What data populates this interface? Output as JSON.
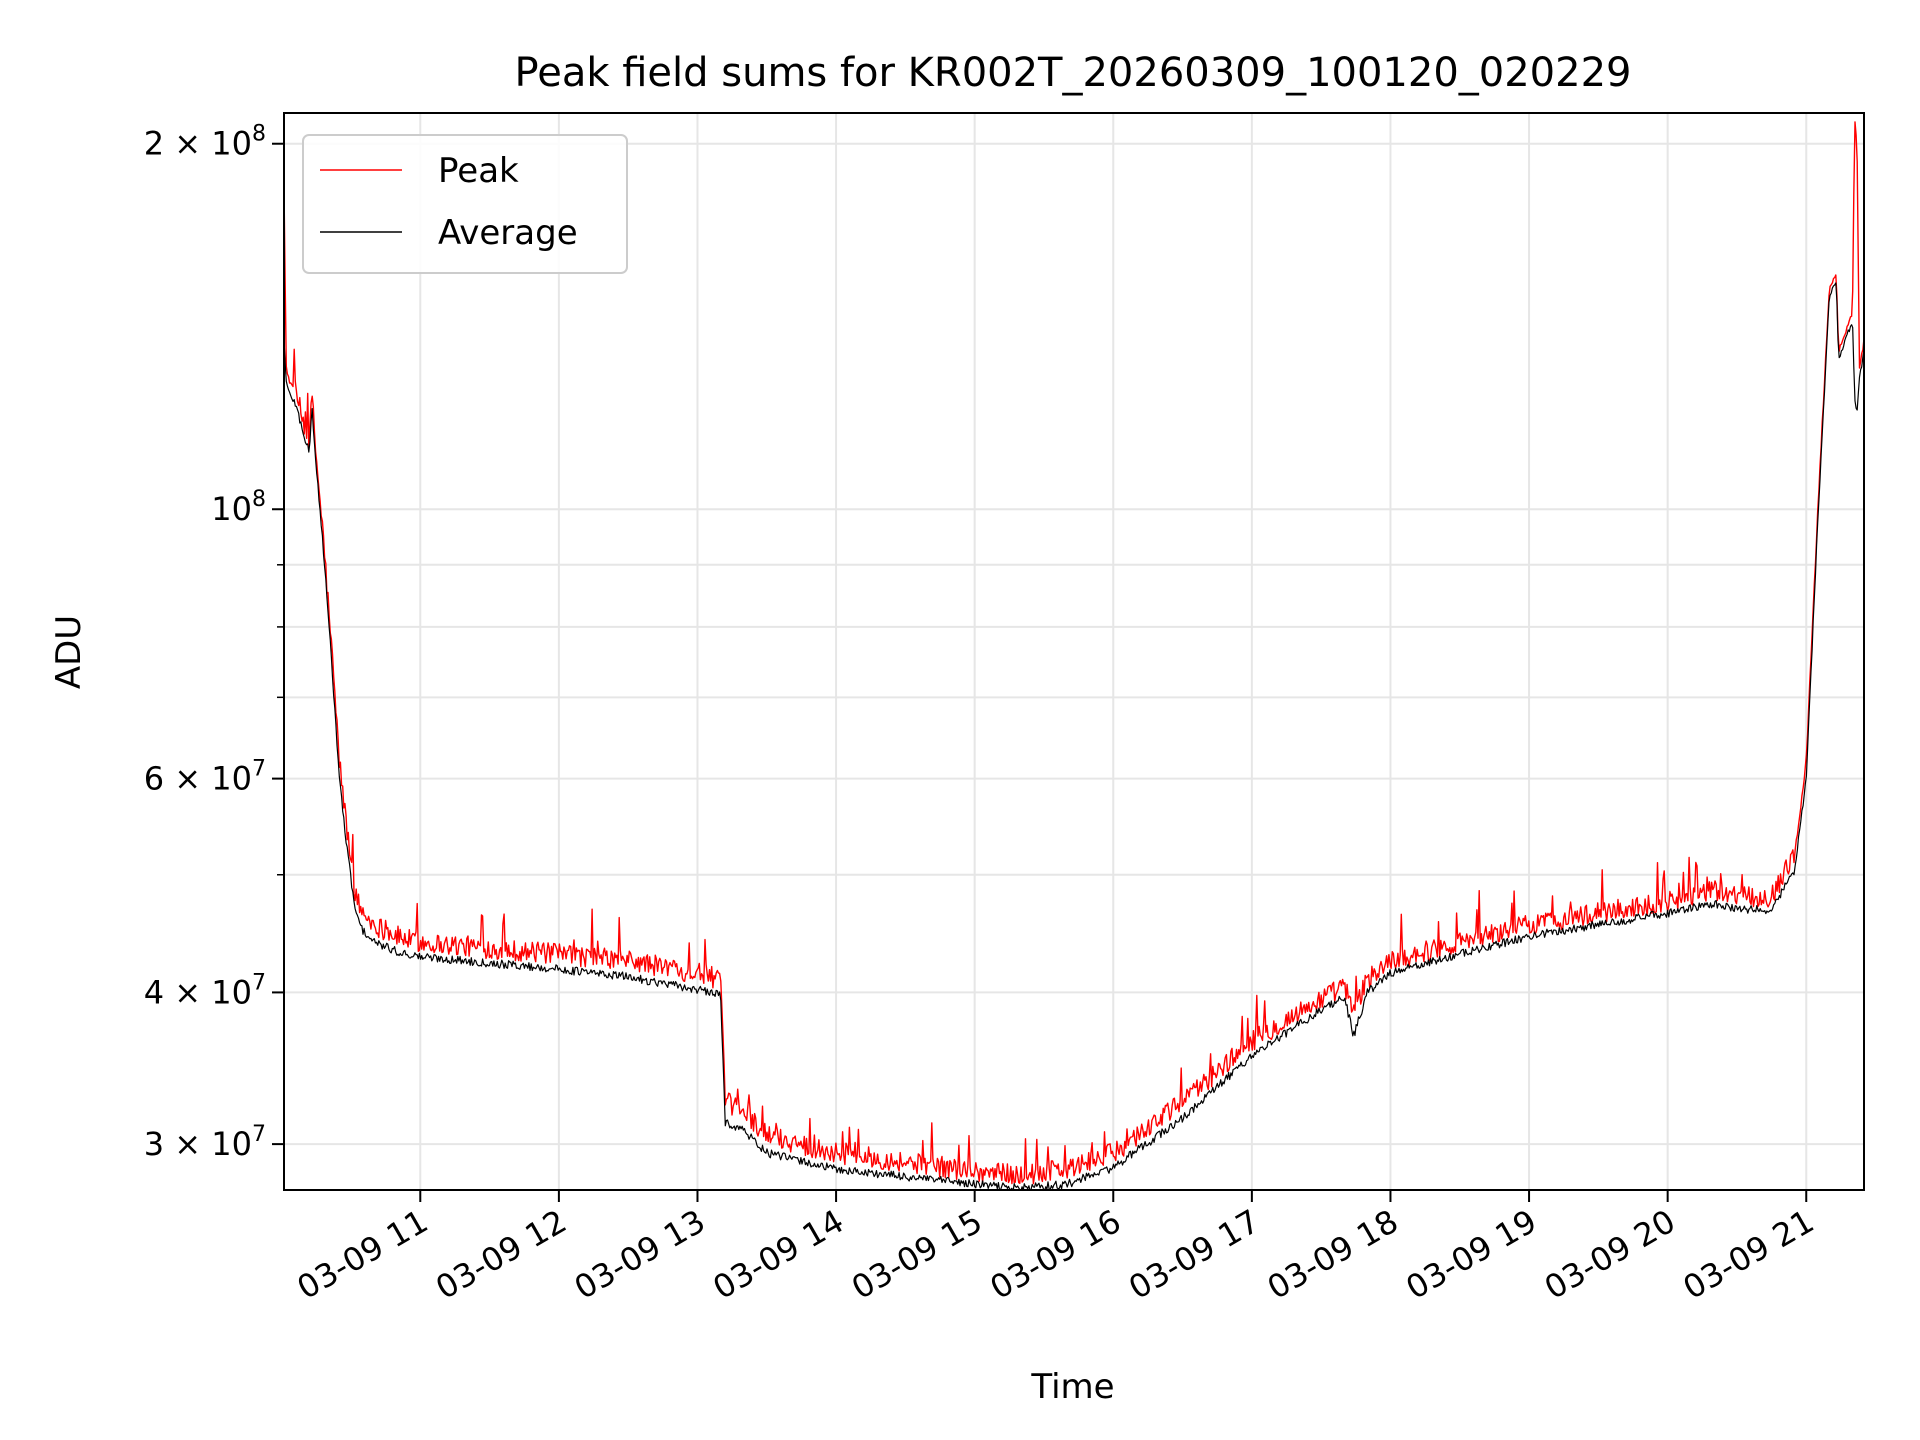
{
  "chart_data": {
    "type": "line",
    "title": "Peak field sums for KR002T_20260309_100120_020229",
    "xlabel": "Time",
    "ylabel": "ADU",
    "yscale": "log",
    "xlim": [
      "03-09 10:01",
      "03-09 21:25"
    ],
    "ylim": [
      27500000,
      212000000
    ],
    "grid": true,
    "legend_position": "upper-left",
    "x_ticks": [
      "03-09 11",
      "03-09 12",
      "03-09 13",
      "03-09 14",
      "03-09 15",
      "03-09 16",
      "03-09 17",
      "03-09 18",
      "03-09 19",
      "03-09 20",
      "03-09 21"
    ],
    "x_tick_hours": [
      11,
      12,
      13,
      14,
      15,
      16,
      17,
      18,
      19,
      20,
      21
    ],
    "y_ticks": [
      {
        "value": 200000000,
        "mantissa": "2",
        "exponent": "8"
      },
      {
        "value": 100000000,
        "mantissa": "",
        "exponent": "8"
      },
      {
        "value": 60000000,
        "mantissa": "6",
        "exponent": "7"
      },
      {
        "value": 40000000,
        "mantissa": "4",
        "exponent": "7"
      },
      {
        "value": 30000000,
        "mantissa": "3",
        "exponent": "7"
      }
    ],
    "y_minor_ticks": [
      50000000,
      70000000,
      80000000,
      90000000
    ],
    "series": [
      {
        "name": "Peak",
        "color": "#ff0000",
        "x": [
          "03-09 10:01",
          "03-09 10:02",
          "03-09 10:03",
          "03-09 10:06",
          "03-09 10:12",
          "03-09 10:13",
          "03-09 10:15",
          "03-09 10:18",
          "03-09 10:22",
          "03-09 10:25",
          "03-09 10:28",
          "03-09 10:32",
          "03-09 10:35",
          "03-09 10:40",
          "03-09 10:45",
          "03-09 10:50",
          "03-09 10:55",
          "03-09 11:00",
          "03-09 11:30",
          "03-09 12:00",
          "03-09 12:30",
          "03-09 13:00",
          "03-09 13:10",
          "03-09 13:12",
          "03-09 13:20",
          "03-09 13:30",
          "03-09 14:00",
          "03-09 14:30",
          "03-09 15:00",
          "03-09 15:20",
          "03-09 15:40",
          "03-09 16:00",
          "03-09 16:30",
          "03-09 17:00",
          "03-09 17:30",
          "03-09 17:40",
          "03-09 17:44",
          "03-09 17:50",
          "03-09 18:00",
          "03-09 18:30",
          "03-09 19:00",
          "03-09 19:30",
          "03-09 20:00",
          "03-09 20:20",
          "03-09 20:30",
          "03-09 20:45",
          "03-09 20:55",
          "03-09 21:00",
          "03-09 21:05",
          "03-09 21:10",
          "03-09 21:13",
          "03-09 21:14",
          "03-09 21:17",
          "03-09 21:20",
          "03-09 21:21",
          "03-09 21:22",
          "03-09 21:23",
          "03-09 21:25"
        ],
        "values": [
          185000000,
          130000000,
          128000000,
          125000000,
          113000000,
          125000000,
          110000000,
          95000000,
          75000000,
          62000000,
          55000000,
          48000000,
          46500000,
          45500000,
          45000000,
          44500000,
          44200000,
          44000000,
          43500000,
          43000000,
          42500000,
          41500000,
          41000000,
          32500000,
          32000000,
          30500000,
          29500000,
          29000000,
          28500000,
          28300000,
          28600000,
          29500000,
          32500000,
          36500000,
          39500000,
          40500000,
          38500000,
          41000000,
          42500000,
          44000000,
          45500000,
          46500000,
          47500000,
          48500000,
          48000000,
          48000000,
          52000000,
          62000000,
          100000000,
          152000000,
          156000000,
          135000000,
          140000000,
          145000000,
          210000000,
          200000000,
          130000000,
          138000000
        ]
      },
      {
        "name": "Average",
        "color": "#000000",
        "x": [
          "03-09 10:01",
          "03-09 10:02",
          "03-09 10:03",
          "03-09 10:06",
          "03-09 10:12",
          "03-09 10:13",
          "03-09 10:15",
          "03-09 10:18",
          "03-09 10:22",
          "03-09 10:25",
          "03-09 10:28",
          "03-09 10:32",
          "03-09 10:35",
          "03-09 10:40",
          "03-09 10:45",
          "03-09 10:50",
          "03-09 10:55",
          "03-09 11:00",
          "03-09 11:30",
          "03-09 12:00",
          "03-09 12:30",
          "03-09 13:00",
          "03-09 13:10",
          "03-09 13:12",
          "03-09 13:20",
          "03-09 13:30",
          "03-09 14:00",
          "03-09 14:30",
          "03-09 15:00",
          "03-09 15:20",
          "03-09 15:40",
          "03-09 16:00",
          "03-09 16:30",
          "03-09 17:00",
          "03-09 17:30",
          "03-09 17:40",
          "03-09 17:44",
          "03-09 17:50",
          "03-09 18:00",
          "03-09 18:30",
          "03-09 19:00",
          "03-09 19:30",
          "03-09 20:00",
          "03-09 20:20",
          "03-09 20:30",
          "03-09 20:45",
          "03-09 20:55",
          "03-09 21:00",
          "03-09 21:05",
          "03-09 21:10",
          "03-09 21:13",
          "03-09 21:14",
          "03-09 21:17",
          "03-09 21:20",
          "03-09 21:21",
          "03-09 21:22",
          "03-09 21:23",
          "03-09 21:25"
        ],
        "values": [
          138000000,
          127000000,
          125000000,
          122000000,
          111000000,
          122000000,
          108000000,
          93000000,
          73000000,
          60000000,
          53000000,
          46500000,
          45000000,
          44000000,
          43600000,
          43200000,
          43000000,
          42800000,
          42300000,
          41800000,
          41200000,
          40200000,
          39800000,
          31300000,
          30800000,
          29500000,
          28600000,
          28200000,
          27800000,
          27600000,
          27800000,
          28700000,
          31500000,
          35500000,
          38700000,
          39700000,
          36800000,
          40000000,
          41500000,
          43000000,
          44500000,
          45500000,
          46500000,
          47300000,
          46800000,
          46800000,
          50500000,
          60000000,
          98000000,
          150000000,
          154000000,
          133000000,
          138000000,
          143000000,
          123000000,
          120000000,
          128000000,
          135000000
        ]
      }
    ]
  }
}
